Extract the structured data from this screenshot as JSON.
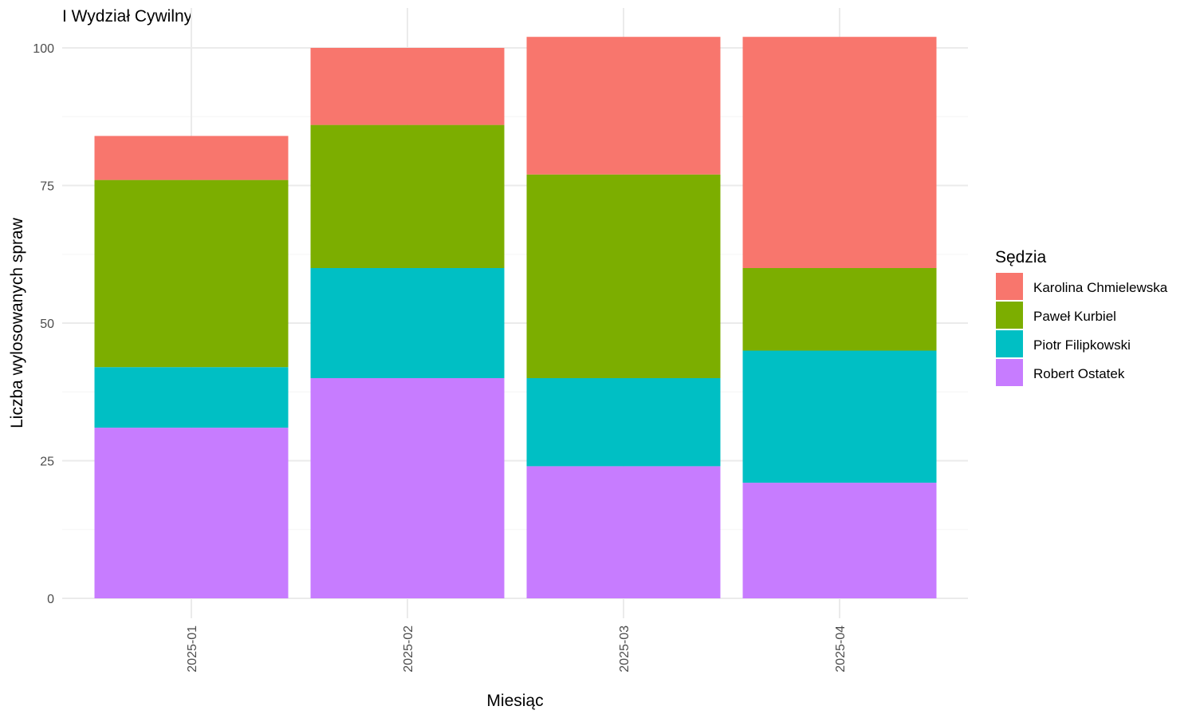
{
  "chart_data": {
    "type": "bar",
    "stacked": true,
    "title": "I Wydział Cywilny",
    "xlabel": "Miesiąc",
    "ylabel": "Liczba wylosowanych spraw",
    "categories": [
      "2025-01",
      "2025-02",
      "2025-03",
      "2025-04"
    ],
    "ylim": [
      0,
      102
    ],
    "yticks": [
      0,
      25,
      50,
      75,
      100
    ],
    "grid": true,
    "legend": {
      "title": "Sędzia",
      "placement": "right"
    },
    "series": [
      {
        "name": "Robert Ostatek",
        "color": "#C77CFF",
        "values": [
          31,
          40,
          24,
          21
        ]
      },
      {
        "name": "Piotr Filipkowski",
        "color": "#00BFC4",
        "values": [
          11,
          20,
          16,
          24
        ]
      },
      {
        "name": "Paweł Kurbiel",
        "color": "#7CAE00",
        "values": [
          34,
          26,
          37,
          15
        ]
      },
      {
        "name": "Karolina Chmielewska",
        "color": "#F8766D",
        "values": [
          8,
          14,
          25,
          42
        ]
      }
    ],
    "legend_order": [
      "Karolina Chmielewska",
      "Paweł Kurbiel",
      "Piotr Filipkowski",
      "Robert Ostatek"
    ]
  }
}
